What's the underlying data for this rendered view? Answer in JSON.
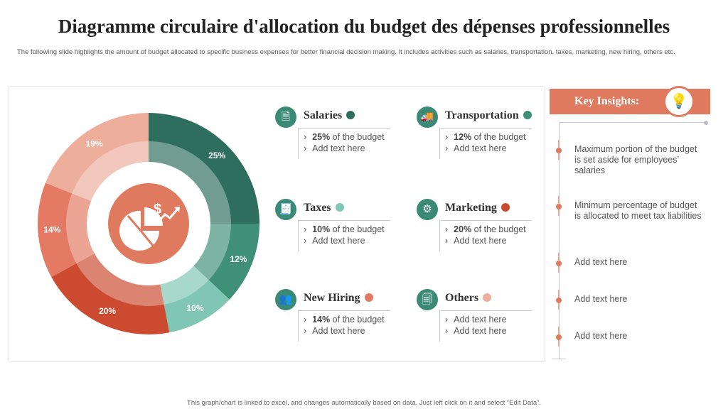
{
  "header": {
    "title": "Diagramme circulaire d'allocation du budget des dépenses professionnelles",
    "subtitle": "The following slide highlights the amount of budget allocated to specific business expenses for better financial decision making. It includes activities such as salaries, transportation, taxes, marketing, new hiring, others etc."
  },
  "chart_data": {
    "type": "pie",
    "categories": [
      "Salaries",
      "Transportation",
      "Taxes",
      "Marketing",
      "New Hiring",
      "Others"
    ],
    "values": [
      25,
      12,
      10,
      20,
      14,
      19
    ],
    "value_labels": [
      "25%",
      "12%",
      "10%",
      "20%",
      "14%",
      "19%"
    ],
    "colors": [
      "#2e6e5e",
      "#3f9077",
      "#7fc6b4",
      "#cb4a30",
      "#e47a63",
      "#eeae9c"
    ],
    "center_icon": "money-chart-icon"
  },
  "categories": [
    {
      "name": "Salaries",
      "icon": "🗎",
      "dot_color": "#2e6e5e",
      "pct": "25%",
      "suffix": " of the budget",
      "line2": "Add text here"
    },
    {
      "name": "Transportation",
      "icon": "🚚",
      "dot_color": "#3f9077",
      "pct": "12%",
      "suffix": " of the budget",
      "line2": "Add text here"
    },
    {
      "name": "Taxes",
      "icon": "🧾",
      "dot_color": "#7fc6b4",
      "pct": "10%",
      "suffix": " of the budget",
      "line2": "Add text here"
    },
    {
      "name": "Marketing",
      "icon": "⚙",
      "dot_color": "#cb4a30",
      "pct": "20%",
      "suffix": " of the budget",
      "line2": "Add text here"
    },
    {
      "name": "New Hiring",
      "icon": "👥",
      "dot_color": "#e47a63",
      "pct": "14%",
      "suffix": " of the budget",
      "line2": "Add text here"
    },
    {
      "name": "Others",
      "icon": "🗐",
      "dot_color": "#eeae9c",
      "line1": "Add text here",
      "line2": "Add text here"
    }
  ],
  "insights": {
    "title": "Key Insights:",
    "icon": "lightbulb-icon",
    "items": [
      "Maximum portion of the budget is set aside for employees’ salaries",
      "Minimum percentage of budget is allocated to meet tax liabilities",
      "Add text here",
      "Add text here",
      "Add text here"
    ]
  },
  "footer": "This graph/chart is linked to excel, and changes automatically based on data. Just left click on it and select “Edit Data”."
}
